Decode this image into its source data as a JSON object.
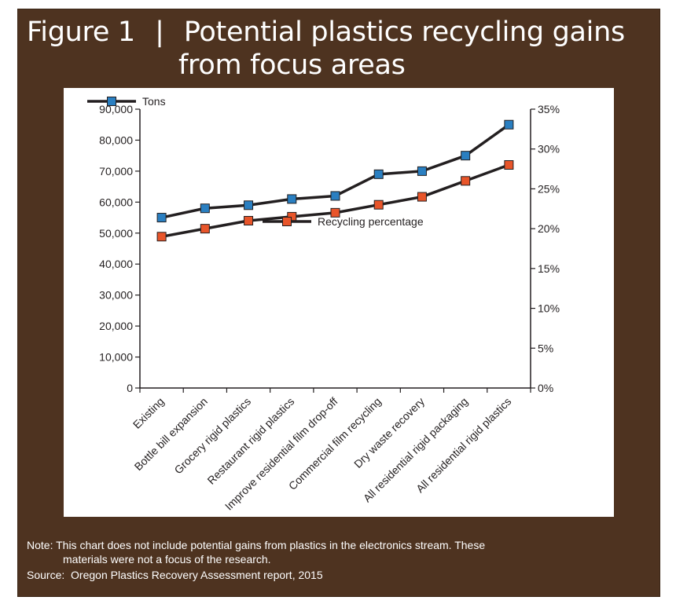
{
  "figure": {
    "label": "Figure 1",
    "separator": "|",
    "title_line1": "Potential plastics recycling gains",
    "title_line2": "from focus areas",
    "note_prefix": "Note:",
    "note_line1": "This chart does not include potential gains from plastics in the electronics stream.  These",
    "note_line2": "materials were not a focus of the research.",
    "source_prefix": "Source:",
    "source_text": "Oregon Plastics Recovery Assessment report, 2015"
  },
  "chart_data": {
    "type": "line",
    "categories": [
      "Existing",
      "Bottle bill expansion",
      "Grocery rigid plastics",
      "Restaurant rigid plastics",
      "Improve residential film drop-off",
      "Commercial film recycling",
      "Dry waste recovery",
      "All residential rigid packaging",
      "All residential rigid plastics"
    ],
    "series": [
      {
        "name": "Tons",
        "axis": "left",
        "color": "#2a7fc1",
        "values": [
          55000,
          58000,
          59000,
          61000,
          62000,
          69000,
          70000,
          75000,
          85000
        ]
      },
      {
        "name": "Recycling percentage",
        "axis": "right",
        "color": "#e8552a",
        "values": [
          19,
          20,
          21,
          21.5,
          22,
          23,
          24,
          26,
          28
        ]
      }
    ],
    "y_left": {
      "range": [
        0,
        90000
      ],
      "ticks": [
        "0",
        "10,000",
        "20,000",
        "30,000",
        "40,000",
        "50,000",
        "60,000",
        "70,000",
        "80,000",
        "90,000"
      ]
    },
    "y_right": {
      "range": [
        0,
        35
      ],
      "ticks": [
        "0%",
        "5%",
        "10%",
        "15%",
        "20%",
        "25%",
        "30%",
        "35%"
      ]
    },
    "grid": false,
    "line_color": "#231f20"
  }
}
